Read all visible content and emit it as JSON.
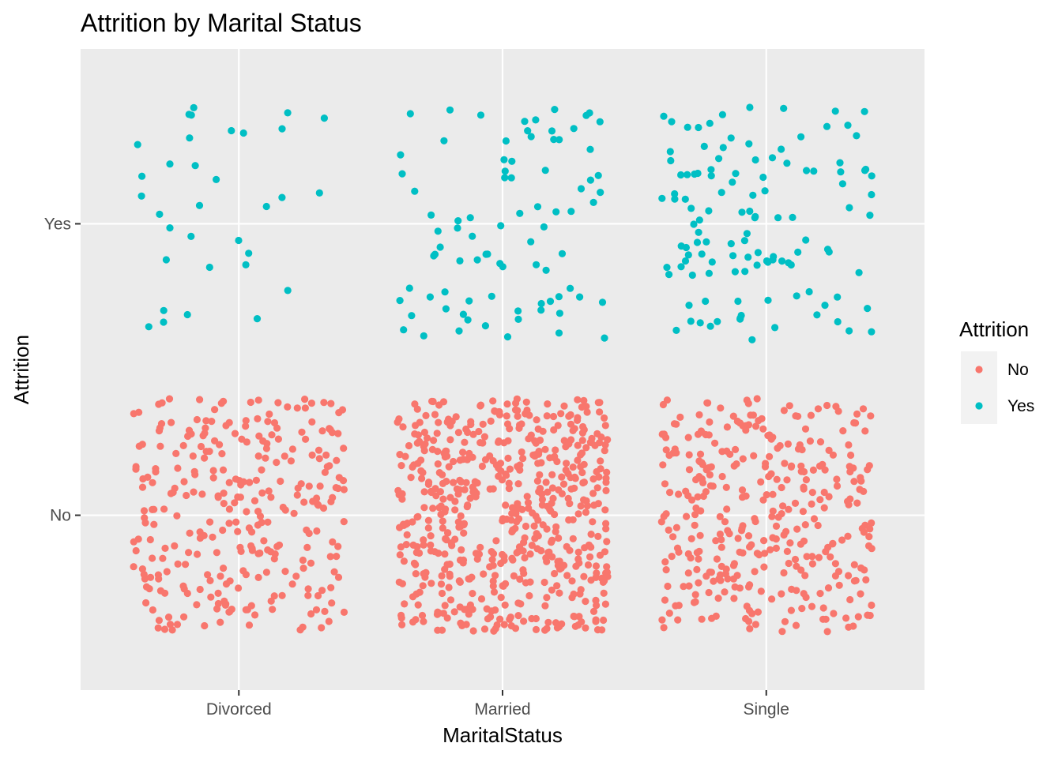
{
  "chart_data": {
    "type": "scatter",
    "title": "Attrition by Marital Status",
    "xlabel": "MaritalStatus",
    "ylabel": "Attrition",
    "categories": [
      "Divorced",
      "Married",
      "Single"
    ],
    "y_categories": [
      "No",
      "Yes"
    ],
    "jitter": true,
    "grid": true,
    "legend": {
      "title": "Attrition",
      "placement": "right",
      "entries": [
        "No",
        "Yes"
      ]
    },
    "colors": {
      "No": "#F8766D",
      "Yes": "#00BFC4",
      "panel": "#EBEBEB",
      "grid": "#FFFFFF"
    },
    "series": [
      {
        "name": "No",
        "counts": {
          "Divorced": 294,
          "Married": 589,
          "Single": 350
        }
      },
      {
        "name": "Yes",
        "counts": {
          "Divorced": 33,
          "Married": 84,
          "Single": 120
        }
      }
    ]
  }
}
